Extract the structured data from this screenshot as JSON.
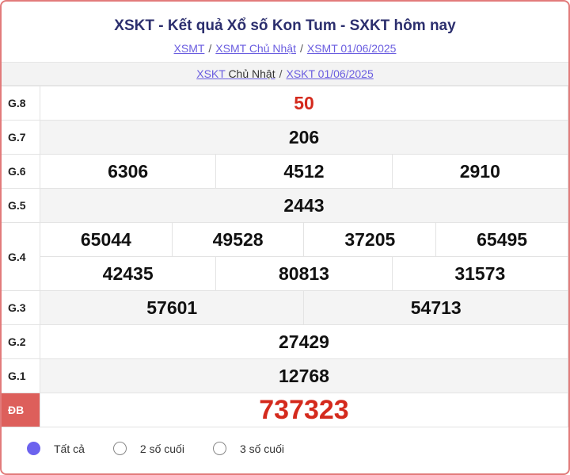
{
  "header": {
    "title": "XSKT - Kết quả Xổ số Kon Tum - SXKT hôm nay",
    "breadcrumbs": [
      "XSMT",
      "XSMT Chủ Nhật",
      "XSMT 01/06/2025"
    ],
    "separator": "/"
  },
  "subnav": {
    "link1_a": "XSKT",
    "link1_b": "Chủ Nhật",
    "link2": "XSKT 01/06/2025"
  },
  "prizes": {
    "g8": {
      "label": "G.8",
      "values": [
        "50"
      ]
    },
    "g7": {
      "label": "G.7",
      "values": [
        "206"
      ]
    },
    "g6": {
      "label": "G.6",
      "values": [
        "6306",
        "4512",
        "2910"
      ]
    },
    "g5": {
      "label": "G.5",
      "values": [
        "2443"
      ]
    },
    "g4": {
      "label": "G.4",
      "values": [
        "65044",
        "49528",
        "37205",
        "65495",
        "42435",
        "80813",
        "31573"
      ]
    },
    "g3": {
      "label": "G.3",
      "values": [
        "57601",
        "54713"
      ]
    },
    "g2": {
      "label": "G.2",
      "values": [
        "27429"
      ]
    },
    "g1": {
      "label": "G.1",
      "values": [
        "12768"
      ]
    },
    "db": {
      "label": "ĐB",
      "values": [
        "737323"
      ]
    }
  },
  "filters": {
    "options": [
      "Tất cả",
      "2 số cuối",
      "3 số cuối"
    ],
    "selected": "Tất cả"
  },
  "colors": {
    "accent": "#6c63ee",
    "highlight": "#d42a1d",
    "border": "#e27b7b",
    "db_bg": "#dd5f5b"
  }
}
